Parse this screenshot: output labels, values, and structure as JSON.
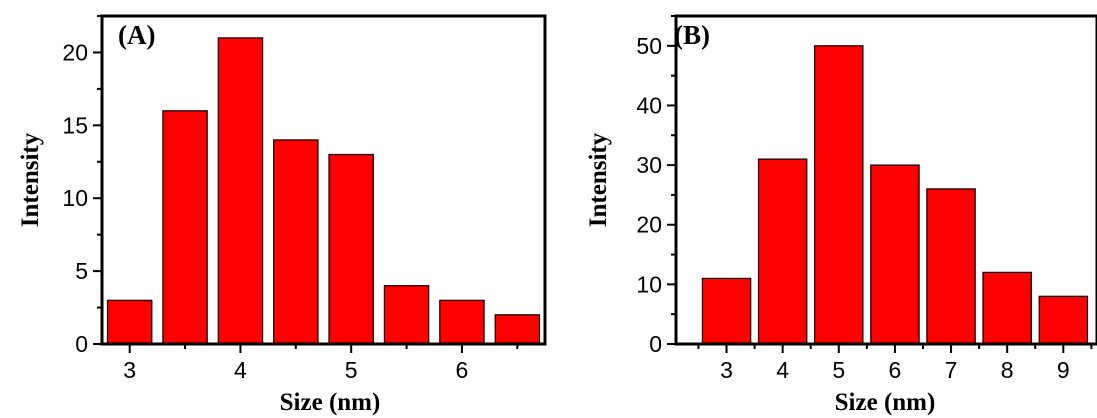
{
  "chart_data": [
    {
      "type": "bar",
      "panel_label": "(A)",
      "x": [
        3,
        3.5,
        4,
        4.5,
        5,
        5.5,
        6,
        6.5
      ],
      "values": [
        3,
        16,
        21,
        14,
        13,
        4,
        3,
        2
      ],
      "xlabel": "Size (nm)",
      "ylabel": "Intensity",
      "xlim": [
        2.75,
        6.75
      ],
      "ylim": [
        0,
        22.5
      ],
      "x_ticks": [
        3,
        4,
        5,
        6
      ],
      "y_ticks": [
        0,
        5,
        10,
        15,
        20
      ],
      "bar_color": "#ff0000",
      "edge_color": "#000000",
      "grid": false
    },
    {
      "type": "bar",
      "panel_label": "(B)",
      "x": [
        3,
        4,
        5,
        6,
        7,
        8,
        9
      ],
      "values": [
        11,
        31,
        50,
        30,
        26,
        12,
        8
      ],
      "xlabel": "Size (nm)",
      "ylabel": "Intensity",
      "xlim": [
        2.1,
        9.6
      ],
      "ylim": [
        0,
        55
      ],
      "x_ticks": [
        3,
        4,
        5,
        6,
        7,
        8,
        9
      ],
      "y_ticks": [
        0,
        10,
        20,
        30,
        40,
        50
      ],
      "bar_color": "#ff0000",
      "edge_color": "#000000",
      "grid": false
    }
  ]
}
